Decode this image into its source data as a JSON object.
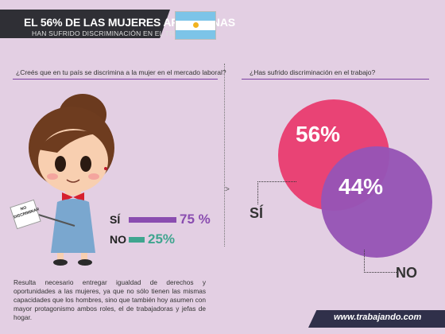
{
  "header": {
    "title": "EL 56% DE LAS MUJERES ARGENTINAS",
    "subtitle": "HAN SUFRIDO DISCRIMINACIÓN EN EL TRABAJO"
  },
  "flag_icon": "argentina-flag-icon",
  "colors": {
    "background": "#e3cfe3",
    "accent_line": "#7b3fa3",
    "si": "#8a4db0",
    "no": "#3fa58f",
    "pink": "#e94375",
    "purple": "#9654b5"
  },
  "sign": {
    "line1": "NO",
    "line2": "DISCRIMINAR"
  },
  "note": "Resulta necesario entregar igualdad de derechos y oportunidades a las mujeres, ya que no sólo tienen las mismas capacidades que los hombres, sino que también hoy asumen con mayor protagonismo ambos roles, el de trabajadoras y jefas de hogar.",
  "website": "www.trabajando.com",
  "chart_data": [
    {
      "type": "bar",
      "title": "¿Creés que en tu país se discrimina a la mujer en el mercado laboral?",
      "categories": [
        "SÍ",
        "NO"
      ],
      "values": [
        75,
        25
      ],
      "labels": [
        "75 %",
        "25%"
      ],
      "unit": "%"
    },
    {
      "type": "pie",
      "title": "¿Has sufrido discriminación en el trabajo?",
      "categories": [
        "SÍ",
        "NO"
      ],
      "values": [
        56,
        44
      ],
      "labels": [
        "56%",
        "44%"
      ],
      "unit": "%"
    }
  ]
}
